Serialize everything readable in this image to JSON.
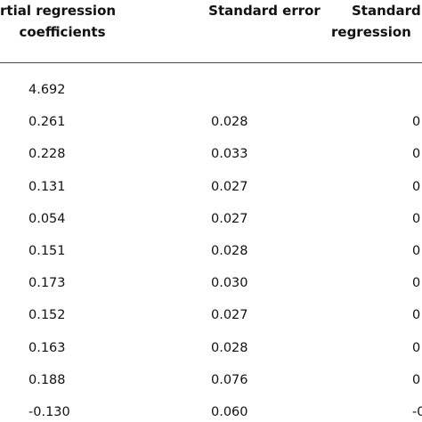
{
  "table": {
    "header": [
      [
        "rtial regression",
        "coefficients"
      ],
      [
        "Standard error"
      ],
      [
        "Standard",
        "regression"
      ]
    ],
    "rows": [
      [
        "4.692",
        null,
        null
      ],
      [
        "0.261",
        "0.028",
        "0"
      ],
      [
        "0.228",
        "0.033",
        "0"
      ],
      [
        "0.131",
        "0.027",
        "0"
      ],
      [
        "0.054",
        "0.027",
        "0"
      ],
      [
        "0.151",
        "0.028",
        "0"
      ],
      [
        "0.173",
        "0.030",
        "0"
      ],
      [
        "0.152",
        "0.027",
        "0"
      ],
      [
        "0.163",
        "0.028",
        "0"
      ],
      [
        "0.188",
        "0.076",
        "0"
      ],
      [
        "-0.130",
        "0.060",
        "-0."
      ]
    ]
  }
}
